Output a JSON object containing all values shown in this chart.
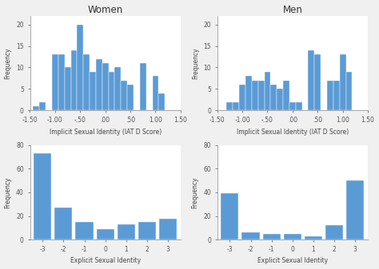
{
  "women_implicit": {
    "bin_centers": [
      -1.375,
      -1.25,
      -1.125,
      -1.0,
      -0.875,
      -0.75,
      -0.625,
      -0.5,
      -0.375,
      -0.25,
      -0.125,
      0.0,
      0.125,
      0.25,
      0.375,
      0.5,
      0.625,
      0.75,
      0.875,
      1.0,
      1.125,
      1.25
    ],
    "heights": [
      1,
      2,
      0,
      13,
      13,
      10,
      14,
      20,
      13,
      9,
      12,
      11,
      9,
      10,
      7,
      6,
      0,
      11,
      0,
      8,
      4,
      0
    ],
    "bin_width": 0.125,
    "xlim": [
      -1.5,
      1.5
    ],
    "ylim": [
      0,
      22
    ],
    "yticks": [
      0,
      5,
      10,
      15,
      20
    ],
    "xticks": [
      -1.5,
      -1.0,
      -0.5,
      0.0,
      0.5,
      1.0,
      1.5
    ],
    "xticklabels": [
      "-1.50",
      "-1.00",
      "-.50",
      ".00",
      ".50",
      "1.00",
      "1.50"
    ],
    "xlabel": "Implicit Sexual Identity (IAT D Score)",
    "ylabel": "Frequency",
    "title": "Women"
  },
  "men_implicit": {
    "bin_centers": [
      -1.375,
      -1.25,
      -1.125,
      -1.0,
      -0.875,
      -0.75,
      -0.625,
      -0.5,
      -0.375,
      -0.25,
      -0.125,
      0.0,
      0.125,
      0.25,
      0.375,
      0.5,
      0.625,
      0.75,
      0.875,
      1.0,
      1.125,
      1.25
    ],
    "heights": [
      0,
      2,
      2,
      6,
      8,
      7,
      7,
      9,
      6,
      5,
      7,
      2,
      2,
      0,
      14,
      13,
      0,
      7,
      7,
      13,
      9,
      0
    ],
    "bin_width": 0.125,
    "xlim": [
      -1.5,
      1.5
    ],
    "ylim": [
      0,
      22
    ],
    "yticks": [
      0,
      5,
      10,
      15,
      20
    ],
    "xticks": [
      -1.5,
      -1.0,
      -0.5,
      0.0,
      0.5,
      1.0,
      1.5
    ],
    "xticklabels": [
      "-1.50",
      "-1.00",
      "-.50",
      ".00",
      ".50",
      "1.00",
      "1.50"
    ],
    "xlabel": "Implicit Sexual Identity (IAT D Score)",
    "ylabel": "Frequency",
    "title": "Men"
  },
  "women_explicit": {
    "bin_centers": [
      -3,
      -2,
      -1,
      0,
      1,
      2,
      3
    ],
    "heights": [
      73,
      27,
      15,
      9,
      13,
      15,
      18
    ],
    "bin_width": 0.85,
    "xlim": [
      -3.6,
      3.6
    ],
    "ylim": [
      0,
      80
    ],
    "yticks": [
      0,
      20,
      40,
      60,
      80
    ],
    "xticks": [
      -3,
      -2,
      -1,
      0,
      1,
      2,
      3
    ],
    "xticklabels": [
      "-3",
      "-2",
      "-1",
      "0",
      "1",
      "2",
      "3"
    ],
    "xlabel": "Explicit Sexual Identity",
    "ylabel": "Frequency",
    "title": ""
  },
  "men_explicit": {
    "bin_centers": [
      -3,
      -2,
      -1,
      0,
      1,
      2,
      3
    ],
    "heights": [
      39,
      6,
      5,
      5,
      3,
      12,
      50
    ],
    "bin_width": 0.85,
    "xlim": [
      -3.6,
      3.6
    ],
    "ylim": [
      0,
      80
    ],
    "yticks": [
      0,
      20,
      40,
      60,
      80
    ],
    "xticks": [
      -3,
      -2,
      -1,
      0,
      1,
      2,
      3
    ],
    "xticklabels": [
      "-3",
      "-2",
      "-1",
      "0",
      "1",
      "2",
      "3"
    ],
    "xlabel": "Explicit Sexual Identity",
    "ylabel": "Frequency",
    "title": ""
  },
  "bar_color": "#5B9BD5",
  "bar_edgecolor": "white",
  "fig_bg": "#f0f0f0",
  "ax_bg": "white",
  "title_fontsize": 8.5,
  "label_fontsize": 5.5,
  "tick_fontsize": 5.5,
  "figsize": [
    4.74,
    3.37
  ],
  "dpi": 100
}
